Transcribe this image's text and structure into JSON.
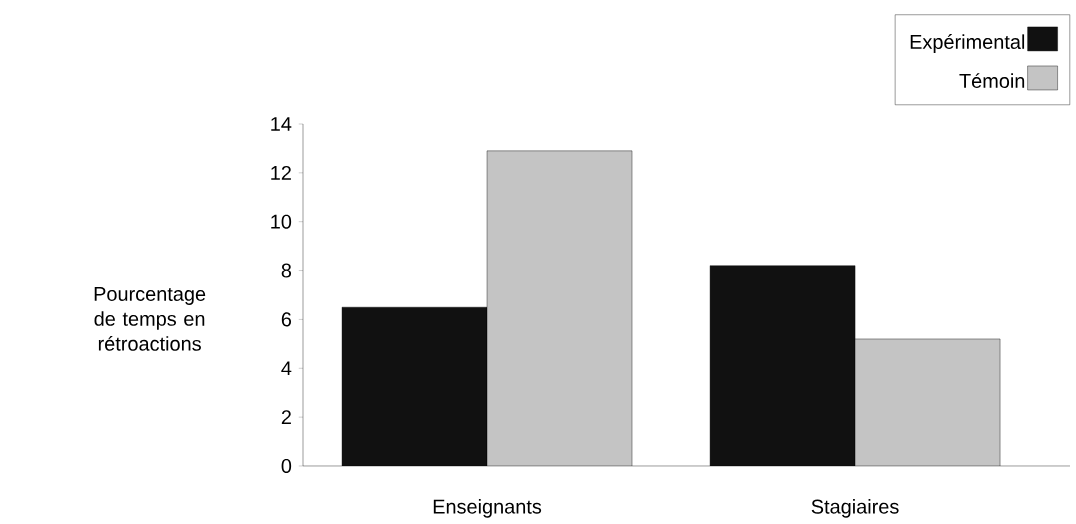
{
  "chart_data": {
    "type": "bar",
    "ylabel": "Pourcentage de temps en rétroactions",
    "categories": [
      "Enseignants",
      "Stagiaires"
    ],
    "series": [
      {
        "name": "Expérimental",
        "color": "#111111",
        "values": [
          6.5,
          8.2
        ]
      },
      {
        "name": "Témoin",
        "color": "#c4c4c4",
        "values": [
          12.9,
          5.2
        ]
      }
    ],
    "ylim": [
      0,
      14
    ],
    "yticks": [
      0,
      2,
      4,
      6,
      8,
      10,
      12,
      14
    ],
    "grid": false,
    "legend": "top right"
  }
}
